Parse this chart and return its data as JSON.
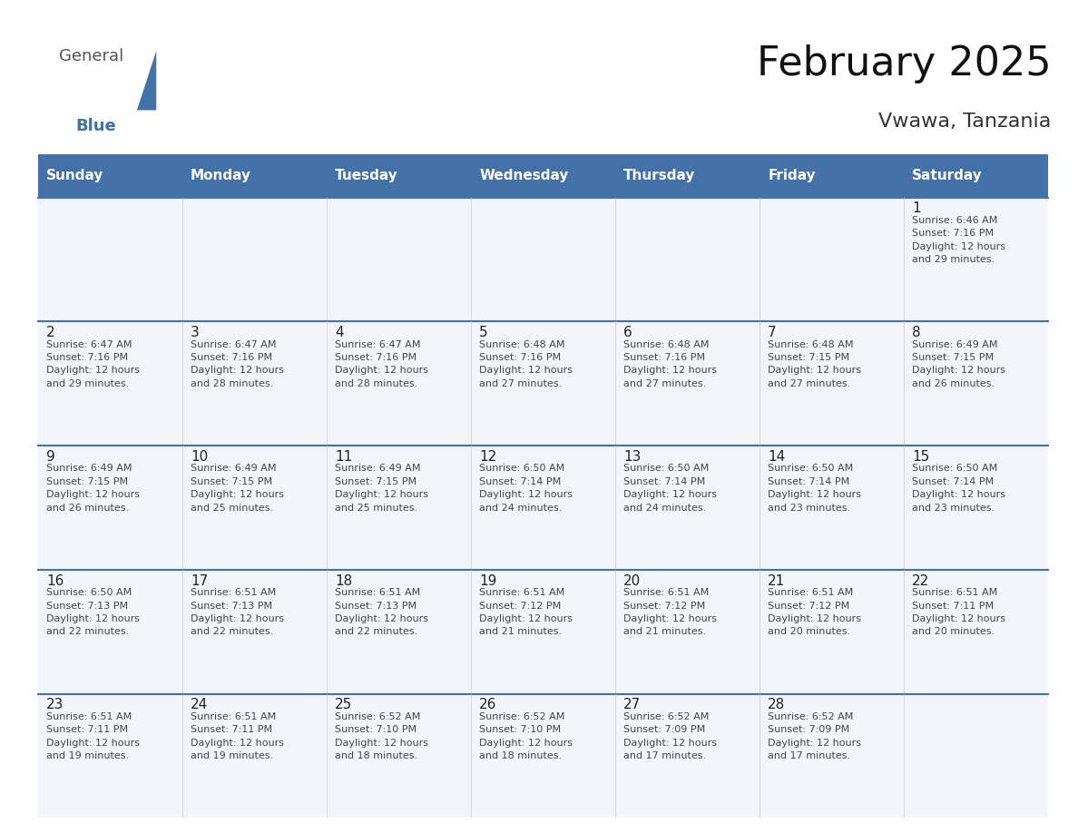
{
  "title": "February 2025",
  "subtitle": "Vwawa, Tanzania",
  "header_bg_color": "#4472a8",
  "header_text_color": "#ffffff",
  "cell_bg_light": "#f2f5f9",
  "cell_bg_white": "#ffffff",
  "border_color_top": "#4472a8",
  "text_color_day": "#222222",
  "text_color_info": "#444444",
  "day_headers": [
    "Sunday",
    "Monday",
    "Tuesday",
    "Wednesday",
    "Thursday",
    "Friday",
    "Saturday"
  ],
  "calendar_data": [
    [
      null,
      null,
      null,
      null,
      null,
      null,
      {
        "day": 1,
        "sunrise": "6:46 AM",
        "sunset": "7:16 PM",
        "daylight_hrs": 12,
        "daylight_min": 29
      }
    ],
    [
      {
        "day": 2,
        "sunrise": "6:47 AM",
        "sunset": "7:16 PM",
        "daylight_hrs": 12,
        "daylight_min": 29
      },
      {
        "day": 3,
        "sunrise": "6:47 AM",
        "sunset": "7:16 PM",
        "daylight_hrs": 12,
        "daylight_min": 28
      },
      {
        "day": 4,
        "sunrise": "6:47 AM",
        "sunset": "7:16 PM",
        "daylight_hrs": 12,
        "daylight_min": 28
      },
      {
        "day": 5,
        "sunrise": "6:48 AM",
        "sunset": "7:16 PM",
        "daylight_hrs": 12,
        "daylight_min": 27
      },
      {
        "day": 6,
        "sunrise": "6:48 AM",
        "sunset": "7:16 PM",
        "daylight_hrs": 12,
        "daylight_min": 27
      },
      {
        "day": 7,
        "sunrise": "6:48 AM",
        "sunset": "7:15 PM",
        "daylight_hrs": 12,
        "daylight_min": 27
      },
      {
        "day": 8,
        "sunrise": "6:49 AM",
        "sunset": "7:15 PM",
        "daylight_hrs": 12,
        "daylight_min": 26
      }
    ],
    [
      {
        "day": 9,
        "sunrise": "6:49 AM",
        "sunset": "7:15 PM",
        "daylight_hrs": 12,
        "daylight_min": 26
      },
      {
        "day": 10,
        "sunrise": "6:49 AM",
        "sunset": "7:15 PM",
        "daylight_hrs": 12,
        "daylight_min": 25
      },
      {
        "day": 11,
        "sunrise": "6:49 AM",
        "sunset": "7:15 PM",
        "daylight_hrs": 12,
        "daylight_min": 25
      },
      {
        "day": 12,
        "sunrise": "6:50 AM",
        "sunset": "7:14 PM",
        "daylight_hrs": 12,
        "daylight_min": 24
      },
      {
        "day": 13,
        "sunrise": "6:50 AM",
        "sunset": "7:14 PM",
        "daylight_hrs": 12,
        "daylight_min": 24
      },
      {
        "day": 14,
        "sunrise": "6:50 AM",
        "sunset": "7:14 PM",
        "daylight_hrs": 12,
        "daylight_min": 23
      },
      {
        "day": 15,
        "sunrise": "6:50 AM",
        "sunset": "7:14 PM",
        "daylight_hrs": 12,
        "daylight_min": 23
      }
    ],
    [
      {
        "day": 16,
        "sunrise": "6:50 AM",
        "sunset": "7:13 PM",
        "daylight_hrs": 12,
        "daylight_min": 22
      },
      {
        "day": 17,
        "sunrise": "6:51 AM",
        "sunset": "7:13 PM",
        "daylight_hrs": 12,
        "daylight_min": 22
      },
      {
        "day": 18,
        "sunrise": "6:51 AM",
        "sunset": "7:13 PM",
        "daylight_hrs": 12,
        "daylight_min": 22
      },
      {
        "day": 19,
        "sunrise": "6:51 AM",
        "sunset": "7:12 PM",
        "daylight_hrs": 12,
        "daylight_min": 21
      },
      {
        "day": 20,
        "sunrise": "6:51 AM",
        "sunset": "7:12 PM",
        "daylight_hrs": 12,
        "daylight_min": 21
      },
      {
        "day": 21,
        "sunrise": "6:51 AM",
        "sunset": "7:12 PM",
        "daylight_hrs": 12,
        "daylight_min": 20
      },
      {
        "day": 22,
        "sunrise": "6:51 AM",
        "sunset": "7:11 PM",
        "daylight_hrs": 12,
        "daylight_min": 20
      }
    ],
    [
      {
        "day": 23,
        "sunrise": "6:51 AM",
        "sunset": "7:11 PM",
        "daylight_hrs": 12,
        "daylight_min": 19
      },
      {
        "day": 24,
        "sunrise": "6:51 AM",
        "sunset": "7:11 PM",
        "daylight_hrs": 12,
        "daylight_min": 19
      },
      {
        "day": 25,
        "sunrise": "6:52 AM",
        "sunset": "7:10 PM",
        "daylight_hrs": 12,
        "daylight_min": 18
      },
      {
        "day": 26,
        "sunrise": "6:52 AM",
        "sunset": "7:10 PM",
        "daylight_hrs": 12,
        "daylight_min": 18
      },
      {
        "day": 27,
        "sunrise": "6:52 AM",
        "sunset": "7:09 PM",
        "daylight_hrs": 12,
        "daylight_min": 17
      },
      {
        "day": 28,
        "sunrise": "6:52 AM",
        "sunset": "7:09 PM",
        "daylight_hrs": 12,
        "daylight_min": 17
      },
      null
    ]
  ],
  "logo_general_color": "#555555",
  "logo_blue_color": "#4472a8",
  "title_fontsize": 32,
  "subtitle_fontsize": 16,
  "header_fontsize": 11,
  "day_num_fontsize": 11,
  "info_fontsize": 8
}
